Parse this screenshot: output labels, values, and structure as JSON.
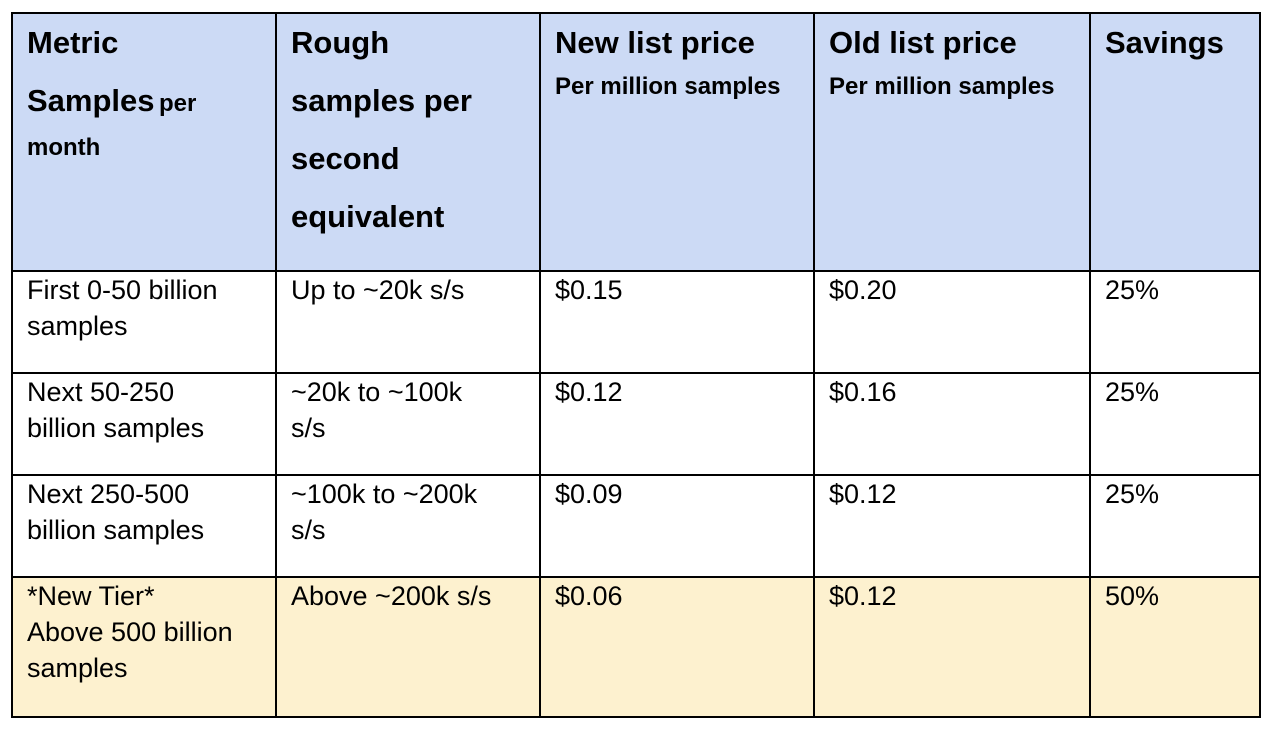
{
  "headers": {
    "col1": {
      "title_main_1": "Metric",
      "title_main_2": "Samples",
      "title_small": "per",
      "title_small_2": "month"
    },
    "col2": {
      "line1": "Rough",
      "line2": "samples per",
      "line3": "second",
      "line4": "equivalent"
    },
    "col3": {
      "title": "New list price",
      "subtitle": "Per million samples"
    },
    "col4": {
      "title": "Old list price",
      "subtitle": "Per million samples"
    },
    "col5": {
      "title": "Savings"
    }
  },
  "rows": [
    {
      "tier_line1": "First 0-50 billion",
      "tier_line2": "samples",
      "tier_line3": "",
      "rate_line1": "Up to ~20k s/s",
      "rate_line2": "",
      "new_price": "$0.15",
      "old_price": "$0.20",
      "savings": "25%"
    },
    {
      "tier_line1": "Next 50-250",
      "tier_line2": "billion samples",
      "tier_line3": "",
      "rate_line1": "~20k to ~100k",
      "rate_line2": "s/s",
      "new_price": "$0.12",
      "old_price": "$0.16",
      "savings": "25%"
    },
    {
      "tier_line1": "Next 250-500",
      "tier_line2": "billion samples",
      "tier_line3": "",
      "rate_line1": "~100k to ~200k",
      "rate_line2": "s/s",
      "new_price": "$0.09",
      "old_price": "$0.12",
      "savings": "25%"
    },
    {
      "tier_line1": "*New Tier*",
      "tier_line2": "Above 500 billion",
      "tier_line3": "samples",
      "rate_line1": "Above ~200k s/s",
      "rate_line2": "",
      "new_price": "$0.06",
      "old_price": "$0.12",
      "savings": "50%"
    }
  ],
  "colors": {
    "header_bg": "#ccdaf5",
    "highlight_bg": "#fdf1cf",
    "border": "#000000"
  }
}
